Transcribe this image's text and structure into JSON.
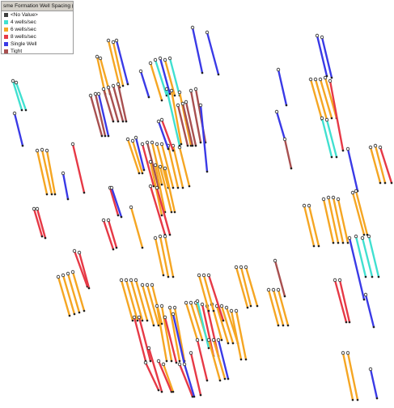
{
  "legend": {
    "title": "sme Formation Well Spacing (Stick",
    "items": [
      {
        "name": "no-value",
        "label": "<No Value>",
        "color": "#404040"
      },
      {
        "name": "4-wells",
        "label": "4 wells/sec",
        "color": "#40e0d0"
      },
      {
        "name": "6-wells",
        "label": "6 wells/sec",
        "color": "#f5a623"
      },
      {
        "name": "8-wells",
        "label": "8 wells/sec",
        "color": "#e63946"
      },
      {
        "name": "single-well",
        "label": "Single Well",
        "color": "#3a3ae6"
      },
      {
        "name": "tight",
        "label": "Tight",
        "color": "#a85050"
      }
    ]
  }
}
